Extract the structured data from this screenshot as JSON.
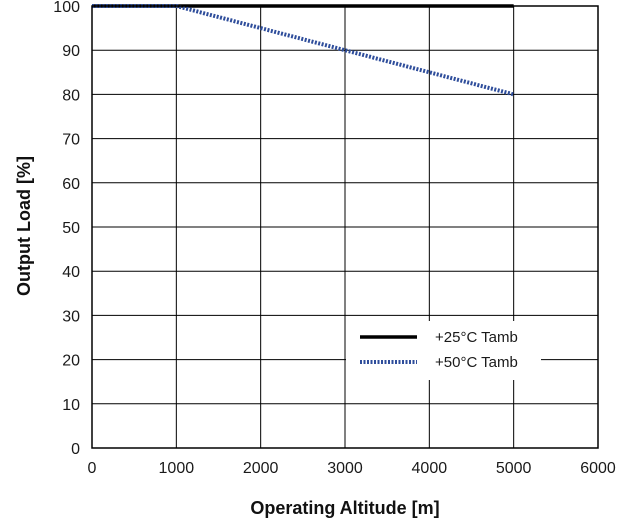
{
  "chart_data": {
    "type": "line",
    "title": "",
    "xlabel": "Operating Altitude [m]",
    "ylabel": "Output Load [%]",
    "xlim": [
      0,
      6000
    ],
    "ylim": [
      0,
      100
    ],
    "x_ticks": [
      0,
      1000,
      2000,
      3000,
      4000,
      5000,
      6000
    ],
    "y_ticks": [
      0,
      10,
      20,
      30,
      40,
      50,
      60,
      70,
      80,
      90,
      100
    ],
    "grid": true,
    "legend_position": "bottom-right",
    "series": [
      {
        "name": "+25°C Tamb",
        "style": "solid",
        "color": "#000000",
        "x": [
          0,
          5000
        ],
        "y": [
          100,
          100
        ]
      },
      {
        "name": "+50°C Tamb",
        "style": "dotted",
        "color": "#2e4d9b",
        "x": [
          0,
          1000,
          5000
        ],
        "y": [
          100,
          100,
          80
        ]
      }
    ]
  }
}
